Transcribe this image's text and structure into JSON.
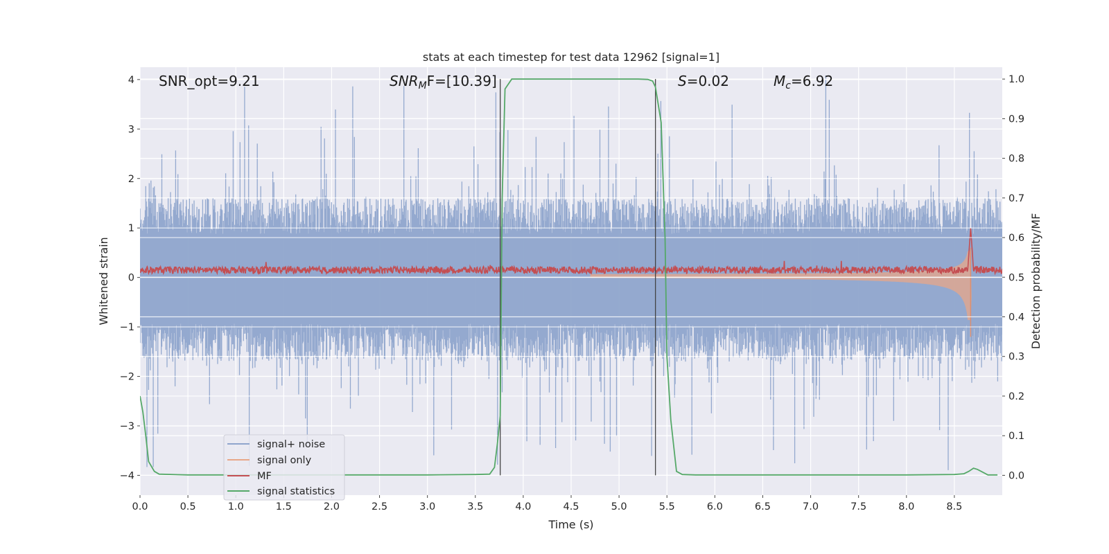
{
  "chart_data": {
    "type": "line",
    "title": "stats at each timestep for test data 12962 [signal=1]",
    "xlabel": "Time (s)",
    "ylabel_left": "Whitened strain",
    "ylabel_right": "Detection probability/MF",
    "xlim": [
      0.0,
      9.0
    ],
    "ylim_left": [
      -4.4,
      4.25
    ],
    "ylim_right": [
      -0.05,
      1.03
    ],
    "xticks": [
      "0.0",
      "0.5",
      "1.0",
      "1.5",
      "2.0",
      "2.5",
      "3.0",
      "3.5",
      "4.0",
      "4.5",
      "5.0",
      "5.5",
      "6.0",
      "6.5",
      "7.0",
      "7.5",
      "8.0",
      "8.5"
    ],
    "yticks_left": [
      "4",
      "3",
      "2",
      "1",
      "0",
      "−1",
      "−2",
      "−3",
      "−4"
    ],
    "yticks_right": [
      "1.0",
      "0.9",
      "0.8",
      "0.7",
      "0.6",
      "0.5",
      "0.4",
      "0.3",
      "0.2",
      "0.1",
      "0.0"
    ],
    "grid": true,
    "annotations": {
      "snr_opt": "SNR_opt=9.21",
      "snr_mf_prefix": "SNR",
      "snr_mf_sub": "M",
      "snr_mf_suffix": "F=[10.39]",
      "s_prefix": "S",
      "s_suffix": "=0.02",
      "mc_prefix": "M",
      "mc_sub": "c",
      "mc_suffix": "=6.92"
    },
    "vlines": [
      3.76,
      5.38
    ],
    "legend": {
      "placement": "lower-left",
      "entries": [
        {
          "label": "signal+ noise",
          "color": "#8fa5cc"
        },
        {
          "label": "signal only",
          "color": "#e8a788"
        },
        {
          "label": "MF",
          "color": "#c44e52"
        },
        {
          "label": "signal statistics",
          "color": "#55a868"
        }
      ]
    },
    "series": [
      {
        "name": "signal+ noise",
        "axis": "left",
        "color": "#8fa5cc",
        "description": "dense whitened noise band",
        "typical_upper": 1.6,
        "typical_lower": -1.7,
        "peak_max": 3.9,
        "peak_min": -3.9
      },
      {
        "name": "signal only",
        "axis": "left",
        "color": "#e8a788",
        "description": "chirp growing in amplitude",
        "start_time": 4.7,
        "merger_time": 8.67,
        "peak_amplitude": 0.9
      },
      {
        "name": "MF",
        "axis": "left",
        "color": "#c44e52",
        "baseline": 0.15,
        "noise_amplitude": 0.07,
        "peak_time": 8.67,
        "peak_value": 1.0
      },
      {
        "name": "signal statistics",
        "axis": "right",
        "color": "#55a868",
        "x": [
          0.0,
          0.03,
          0.06,
          0.09,
          0.15,
          0.2,
          0.5,
          1.0,
          2.0,
          3.0,
          3.5,
          3.65,
          3.7,
          3.73,
          3.76,
          3.78,
          3.81,
          3.88,
          4.0,
          4.5,
          5.0,
          5.2,
          5.3,
          5.35,
          5.38,
          5.44,
          5.48,
          5.5,
          5.54,
          5.6,
          5.66,
          5.8,
          6.0,
          7.0,
          8.0,
          8.5,
          8.6,
          8.65,
          8.7,
          8.74,
          8.78,
          8.85,
          8.95
        ],
        "values": [
          0.2,
          0.16,
          0.1,
          0.035,
          0.01,
          0.003,
          0.001,
          0.001,
          0.001,
          0.001,
          0.002,
          0.003,
          0.02,
          0.08,
          0.15,
          0.7,
          0.975,
          1.0,
          1.0,
          1.0,
          1.0,
          1.0,
          0.999,
          0.995,
          0.98,
          0.89,
          0.6,
          0.3,
          0.14,
          0.01,
          0.002,
          0.001,
          0.001,
          0.001,
          0.001,
          0.002,
          0.004,
          0.01,
          0.018,
          0.015,
          0.01,
          0.001,
          0.001
        ]
      }
    ]
  }
}
